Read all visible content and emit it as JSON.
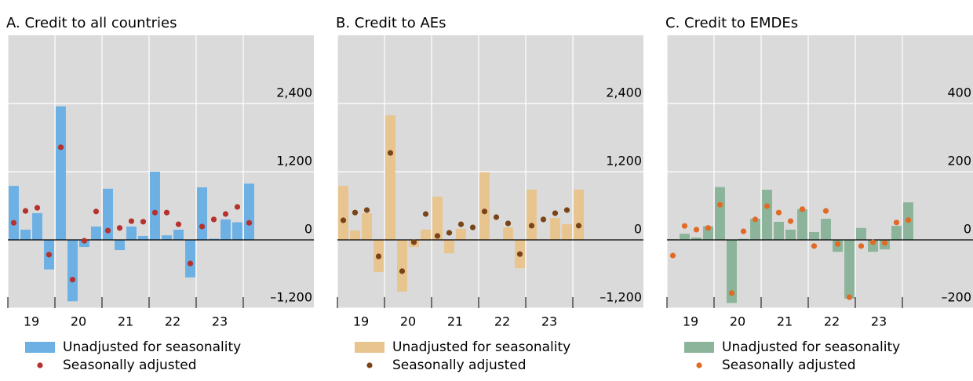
{
  "chart_data": [
    {
      "type": "bar",
      "title": "A. Credit to all countries",
      "x": [
        19.125,
        19.375,
        19.625,
        19.875,
        20.125,
        20.375,
        20.625,
        20.875,
        21.125,
        21.375,
        21.625,
        21.875,
        22.125,
        22.375,
        22.625,
        22.875,
        23.125,
        23.375,
        23.625,
        23.875,
        24.125
      ],
      "xlim": [
        19,
        25.5
      ],
      "xticks": [
        {
          "value": 19.5,
          "label": "19"
        },
        {
          "value": 20.5,
          "label": "20"
        },
        {
          "value": 21.5,
          "label": "21"
        },
        {
          "value": 22.5,
          "label": "22"
        },
        {
          "value": 23.5,
          "label": "23"
        }
      ],
      "xminorticks": [
        19,
        20,
        21,
        22,
        23,
        24
      ],
      "ylim": [
        -1200,
        3600
      ],
      "yticks": [
        {
          "value": -1200,
          "label": "–1,200"
        },
        0,
        {
          "value": 1200,
          "label": "1,200"
        },
        {
          "value": 2400,
          "label": "2,400"
        }
      ],
      "grid": true,
      "series": [
        {
          "name": "Unadjusted for seasonality",
          "type": "bar",
          "color": "#6cb0e4",
          "values": [
            950,
            180,
            470,
            -520,
            2350,
            -1080,
            -125,
            235,
            900,
            -180,
            235,
            70,
            1200,
            80,
            180,
            -660,
            925,
            20,
            360,
            310,
            990
          ]
        },
        {
          "name": "Seasonally adjusted",
          "type": "scatter",
          "color": "#b5322e",
          "values": [
            300,
            510,
            565,
            -260,
            1630,
            -700,
            -15,
            500,
            165,
            210,
            330,
            320,
            480,
            480,
            275,
            -415,
            235,
            360,
            455,
            580,
            300
          ]
        }
      ]
    },
    {
      "type": "bar",
      "title": "B. Credit to AEs",
      "x": [
        19.125,
        19.375,
        19.625,
        19.875,
        20.125,
        20.375,
        20.625,
        20.875,
        21.125,
        21.375,
        21.625,
        21.875,
        22.125,
        22.375,
        22.625,
        22.875,
        23.125,
        23.375,
        23.625,
        23.875,
        24.125
      ],
      "xlim": [
        19,
        25.5
      ],
      "xticks": [
        {
          "value": 19.5,
          "label": "19"
        },
        {
          "value": 20.5,
          "label": "20"
        },
        {
          "value": 21.5,
          "label": "21"
        },
        {
          "value": 22.5,
          "label": "22"
        },
        {
          "value": 23.5,
          "label": "23"
        }
      ],
      "xminorticks": [
        19,
        20,
        21,
        22,
        23,
        24
      ],
      "ylim": [
        -1200,
        3600
      ],
      "yticks": [
        {
          "value": -1200,
          "label": "–1,200"
        },
        0,
        {
          "value": 1200,
          "label": "1,200"
        },
        {
          "value": 2400,
          "label": "2,400"
        }
      ],
      "grid": true,
      "series": [
        {
          "name": "Unadjusted for seasonality",
          "type": "bar",
          "color": "#e8c48f",
          "values": [
            950,
            165,
            470,
            -565,
            2190,
            -910,
            -125,
            180,
            760,
            -235,
            195,
            10,
            1190,
            10,
            220,
            -500,
            885,
            10,
            385,
            275,
            885
          ]
        },
        {
          "name": "Seasonally adjusted",
          "type": "scatter",
          "color": "#7a4419",
          "values": [
            345,
            480,
            525,
            -290,
            1530,
            -550,
            -40,
            455,
            70,
            125,
            275,
            220,
            500,
            400,
            290,
            -250,
            250,
            360,
            470,
            525,
            250
          ]
        }
      ]
    },
    {
      "type": "bar",
      "title": "C. Credit to EMDEs",
      "x": [
        19.125,
        19.375,
        19.625,
        19.875,
        20.125,
        20.375,
        20.625,
        20.875,
        21.125,
        21.375,
        21.625,
        21.875,
        22.125,
        22.375,
        22.625,
        22.875,
        23.125,
        23.375,
        23.625,
        23.875,
        24.125
      ],
      "xlim": [
        19,
        25.5
      ],
      "xticks": [
        {
          "value": 19.5,
          "label": "19"
        },
        {
          "value": 20.5,
          "label": "20"
        },
        {
          "value": 21.5,
          "label": "21"
        },
        {
          "value": 22.5,
          "label": "22"
        },
        {
          "value": 23.5,
          "label": "23"
        }
      ],
      "xminorticks": [
        19,
        20,
        21,
        22,
        23,
        24
      ],
      "ylim": [
        -200,
        600
      ],
      "yticks": [
        {
          "value": -200,
          "label": "–200"
        },
        0,
        200,
        400
      ],
      "grid": true,
      "series": [
        {
          "name": "Unadjusted for seasonality",
          "type": "bar",
          "color": "#8bb49a",
          "values": [
            2,
            18,
            7,
            40,
            155,
            -185,
            3,
            62,
            147,
            53,
            30,
            90,
            23,
            62,
            -35,
            -172,
            35,
            -35,
            -28,
            41,
            110
          ]
        },
        {
          "name": "Seasonally adjusted",
          "type": "scatter",
          "color": "#e06a26",
          "values": [
            -46,
            41,
            30,
            35,
            103,
            -156,
            25,
            60,
            99,
            80,
            55,
            90,
            -18,
            85,
            -12,
            -168,
            -18,
            -7,
            -9,
            51,
            58
          ]
        }
      ]
    }
  ]
}
